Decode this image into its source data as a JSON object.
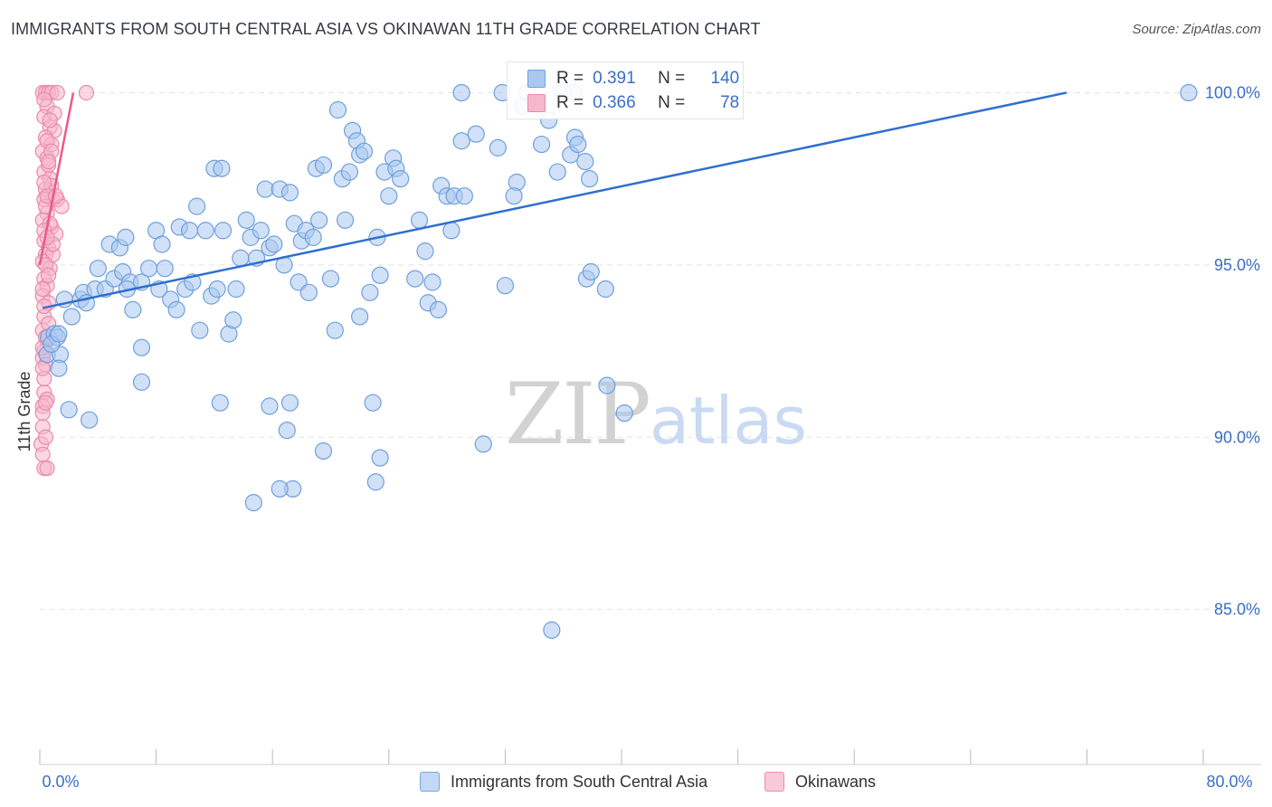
{
  "title": "IMMIGRANTS FROM SOUTH CENTRAL ASIA VS OKINAWAN 11TH GRADE CORRELATION CHART",
  "source": "Source: ZipAtlas.com",
  "watermark": {
    "zip": "ZIP",
    "atlas": "atlas"
  },
  "colors": {
    "blue_fill": "#a9c8f0",
    "blue_stroke": "#6f9fdc",
    "blue_line": "#2e6fd0",
    "pink_fill": "#f6b6cb",
    "pink_stroke": "#ea8aab",
    "pink_line": "#ea5a8a",
    "tick_label": "#3a6fc4",
    "grid": "#e3e3e3"
  },
  "stats_legend": {
    "r_label": "R =",
    "n_label": "N =",
    "series": [
      {
        "r": "0.391",
        "n": "140"
      },
      {
        "r": "0.366",
        "n": "78"
      }
    ]
  },
  "bottom_legend": [
    {
      "label": "Immigrants from South Central Asia"
    },
    {
      "label": "Okinawans"
    }
  ],
  "chart_data": {
    "type": "scatter",
    "title": "IMMIGRANTS FROM SOUTH CENTRAL ASIA VS OKINAWAN 11TH GRADE CORRELATION CHART",
    "xlabel": "",
    "ylabel": "11th Grade",
    "xlim": [
      0,
      80
    ],
    "ylim": [
      80.5,
      100.8
    ],
    "x_tick_labels": [
      "0.0%",
      "80.0%"
    ],
    "y_ticks": [
      85,
      90,
      95,
      100
    ],
    "y_tick_labels": [
      "85.0%",
      "90.0%",
      "95.0%",
      "100.0%"
    ],
    "grid": true,
    "series": [
      {
        "name": "Immigrants from South Central Asia",
        "r": 0.391,
        "n": 140,
        "trend": {
          "x": [
            0.2,
            70.6
          ],
          "y": [
            93.75,
            100.0
          ]
        },
        "points": [
          [
            0.5,
            92.4
          ],
          [
            0.6,
            92.9
          ],
          [
            1.0,
            93.0
          ],
          [
            1.2,
            92.9
          ],
          [
            1.4,
            92.4
          ],
          [
            0.8,
            92.7
          ],
          [
            1.3,
            93.0
          ],
          [
            1.7,
            94.0
          ],
          [
            2.2,
            93.5
          ],
          [
            2.8,
            94.0
          ],
          [
            3.0,
            94.2
          ],
          [
            3.2,
            93.9
          ],
          [
            3.8,
            94.3
          ],
          [
            4.0,
            94.9
          ],
          [
            4.5,
            94.3
          ],
          [
            4.8,
            95.6
          ],
          [
            5.1,
            94.6
          ],
          [
            5.5,
            95.5
          ],
          [
            5.7,
            94.8
          ],
          [
            5.9,
            95.8
          ],
          [
            6.2,
            94.5
          ],
          [
            6.4,
            93.7
          ],
          [
            7.0,
            94.5
          ],
          [
            7.5,
            94.9
          ],
          [
            7.0,
            92.6
          ],
          [
            8.0,
            96.0
          ],
          [
            8.4,
            95.6
          ],
          [
            8.6,
            94.9
          ],
          [
            9.0,
            94.0
          ],
          [
            9.4,
            93.7
          ],
          [
            9.6,
            96.1
          ],
          [
            10.0,
            94.3
          ],
          [
            10.3,
            96.0
          ],
          [
            10.5,
            94.5
          ],
          [
            10.8,
            96.7
          ],
          [
            11.0,
            93.1
          ],
          [
            11.4,
            96.0
          ],
          [
            11.8,
            94.1
          ],
          [
            12.0,
            97.8
          ],
          [
            12.2,
            94.3
          ],
          [
            12.5,
            97.8
          ],
          [
            12.6,
            96.0
          ],
          [
            13.0,
            93.0
          ],
          [
            13.3,
            93.4
          ],
          [
            13.5,
            94.3
          ],
          [
            13.8,
            95.2
          ],
          [
            14.2,
            96.3
          ],
          [
            14.5,
            95.8
          ],
          [
            14.9,
            95.2
          ],
          [
            15.2,
            96.0
          ],
          [
            15.5,
            97.2
          ],
          [
            15.8,
            95.5
          ],
          [
            16.1,
            95.6
          ],
          [
            16.5,
            97.2
          ],
          [
            16.8,
            95.0
          ],
          [
            17.2,
            97.1
          ],
          [
            17.5,
            96.2
          ],
          [
            17.8,
            94.5
          ],
          [
            18.0,
            95.7
          ],
          [
            18.3,
            96.0
          ],
          [
            18.5,
            94.2
          ],
          [
            18.8,
            95.8
          ],
          [
            19.0,
            97.8
          ],
          [
            19.2,
            96.3
          ],
          [
            19.5,
            97.9
          ],
          [
            20.0,
            94.6
          ],
          [
            20.5,
            99.5
          ],
          [
            20.8,
            97.5
          ],
          [
            21.0,
            96.3
          ],
          [
            21.3,
            97.7
          ],
          [
            21.5,
            98.9
          ],
          [
            21.8,
            98.6
          ],
          [
            22.0,
            98.2
          ],
          [
            22.3,
            98.3
          ],
          [
            22.7,
            94.2
          ],
          [
            23.2,
            95.8
          ],
          [
            23.4,
            94.7
          ],
          [
            23.7,
            97.7
          ],
          [
            24.0,
            97.0
          ],
          [
            24.3,
            98.1
          ],
          [
            24.5,
            97.8
          ],
          [
            24.8,
            97.5
          ],
          [
            22.9,
            91.0
          ],
          [
            22.0,
            93.5
          ],
          [
            17.4,
            88.5
          ],
          [
            17.2,
            91.0
          ],
          [
            17.0,
            90.2
          ],
          [
            20.3,
            93.1
          ],
          [
            23.4,
            89.4
          ],
          [
            25.8,
            94.6
          ],
          [
            26.1,
            96.3
          ],
          [
            26.5,
            95.4
          ],
          [
            26.7,
            93.9
          ],
          [
            27.0,
            94.5
          ],
          [
            27.4,
            93.7
          ],
          [
            27.6,
            97.3
          ],
          [
            28.0,
            97.0
          ],
          [
            28.3,
            96.0
          ],
          [
            28.5,
            97.0
          ],
          [
            29.0,
            98.6
          ],
          [
            29.2,
            97.0
          ],
          [
            30.0,
            98.8
          ],
          [
            31.5,
            98.4
          ],
          [
            31.8,
            100.0
          ],
          [
            32.8,
            97.4
          ],
          [
            30.5,
            89.8
          ],
          [
            32.0,
            94.4
          ],
          [
            32.6,
            97.0
          ],
          [
            34.5,
            98.5
          ],
          [
            35.0,
            99.2
          ],
          [
            35.6,
            97.7
          ],
          [
            36.5,
            98.2
          ],
          [
            36.8,
            98.7
          ],
          [
            37.0,
            98.5
          ],
          [
            37.5,
            98.0
          ],
          [
            37.8,
            97.5
          ],
          [
            37.6,
            94.6
          ],
          [
            37.9,
            94.8
          ],
          [
            38.9,
            94.3
          ],
          [
            39.0,
            91.5
          ],
          [
            40.2,
            90.7
          ],
          [
            29.0,
            100.0
          ],
          [
            33.2,
            99.6
          ],
          [
            33.5,
            100.0
          ],
          [
            36.0,
            100.0
          ],
          [
            36.7,
            100.0
          ],
          [
            79.0,
            100.0
          ],
          [
            7.0,
            91.6
          ],
          [
            12.4,
            91.0
          ],
          [
            15.8,
            90.9
          ],
          [
            14.7,
            88.1
          ],
          [
            16.5,
            88.5
          ],
          [
            19.5,
            89.6
          ],
          [
            23.1,
            88.7
          ],
          [
            35.2,
            84.4
          ],
          [
            1.3,
            92.0
          ],
          [
            2.0,
            90.8
          ],
          [
            3.4,
            90.5
          ],
          [
            8.2,
            94.3
          ],
          [
            6.0,
            94.3
          ]
        ]
      },
      {
        "name": "Okinawans",
        "r": 0.366,
        "n": 78,
        "trend": {
          "x": [
            0.0,
            2.3
          ],
          "y": [
            95.0,
            100.0
          ]
        },
        "points": [
          [
            0.2,
            100.0
          ],
          [
            0.4,
            100.0
          ],
          [
            0.6,
            100.0
          ],
          [
            0.8,
            100.0
          ],
          [
            1.2,
            100.0
          ],
          [
            3.2,
            100.0
          ],
          [
            0.5,
            99.6
          ],
          [
            0.3,
            99.3
          ],
          [
            0.7,
            99.0
          ],
          [
            1.0,
            98.9
          ],
          [
            0.4,
            98.7
          ],
          [
            0.8,
            98.5
          ],
          [
            0.2,
            98.3
          ],
          [
            0.5,
            98.1
          ],
          [
            0.3,
            97.7
          ],
          [
            0.7,
            97.5
          ],
          [
            0.4,
            97.2
          ],
          [
            0.6,
            97.0
          ],
          [
            0.9,
            96.9
          ],
          [
            0.3,
            96.9
          ],
          [
            1.2,
            96.9
          ],
          [
            1.5,
            96.7
          ],
          [
            0.5,
            96.5
          ],
          [
            0.2,
            96.3
          ],
          [
            0.8,
            96.1
          ],
          [
            1.1,
            95.9
          ],
          [
            0.3,
            95.7
          ],
          [
            0.6,
            95.5
          ],
          [
            0.4,
            95.3
          ],
          [
            0.9,
            95.3
          ],
          [
            0.2,
            95.1
          ],
          [
            0.7,
            94.9
          ],
          [
            0.3,
            94.6
          ],
          [
            0.5,
            94.4
          ],
          [
            0.2,
            94.1
          ],
          [
            0.6,
            93.9
          ],
          [
            0.3,
            93.5
          ],
          [
            0.2,
            93.1
          ],
          [
            0.5,
            92.8
          ],
          [
            0.3,
            92.5
          ],
          [
            0.2,
            92.3
          ],
          [
            0.4,
            92.1
          ],
          [
            0.3,
            91.3
          ],
          [
            0.5,
            91.1
          ],
          [
            0.2,
            90.9
          ],
          [
            0.1,
            89.8
          ],
          [
            0.2,
            89.5
          ],
          [
            0.3,
            89.1
          ],
          [
            0.5,
            89.1
          ],
          [
            0.2,
            90.3
          ],
          [
            0.6,
            97.9
          ],
          [
            0.4,
            96.7
          ],
          [
            0.8,
            97.3
          ],
          [
            0.5,
            98.6
          ],
          [
            1.0,
            99.4
          ],
          [
            0.3,
            99.8
          ],
          [
            0.7,
            96.2
          ],
          [
            0.4,
            95.0
          ],
          [
            0.2,
            94.3
          ],
          [
            0.6,
            93.3
          ],
          [
            0.4,
            92.9
          ],
          [
            0.3,
            91.7
          ],
          [
            0.2,
            90.7
          ],
          [
            0.8,
            98.3
          ],
          [
            0.5,
            97.0
          ],
          [
            0.3,
            96.0
          ],
          [
            0.6,
            94.7
          ],
          [
            0.9,
            95.6
          ],
          [
            0.2,
            92.0
          ],
          [
            0.4,
            90.0
          ],
          [
            0.7,
            99.2
          ],
          [
            0.3,
            97.4
          ],
          [
            0.5,
            95.8
          ],
          [
            1.1,
            97.0
          ],
          [
            0.6,
            98.0
          ],
          [
            0.3,
            93.8
          ],
          [
            0.2,
            92.6
          ],
          [
            0.4,
            91.0
          ]
        ]
      }
    ]
  }
}
